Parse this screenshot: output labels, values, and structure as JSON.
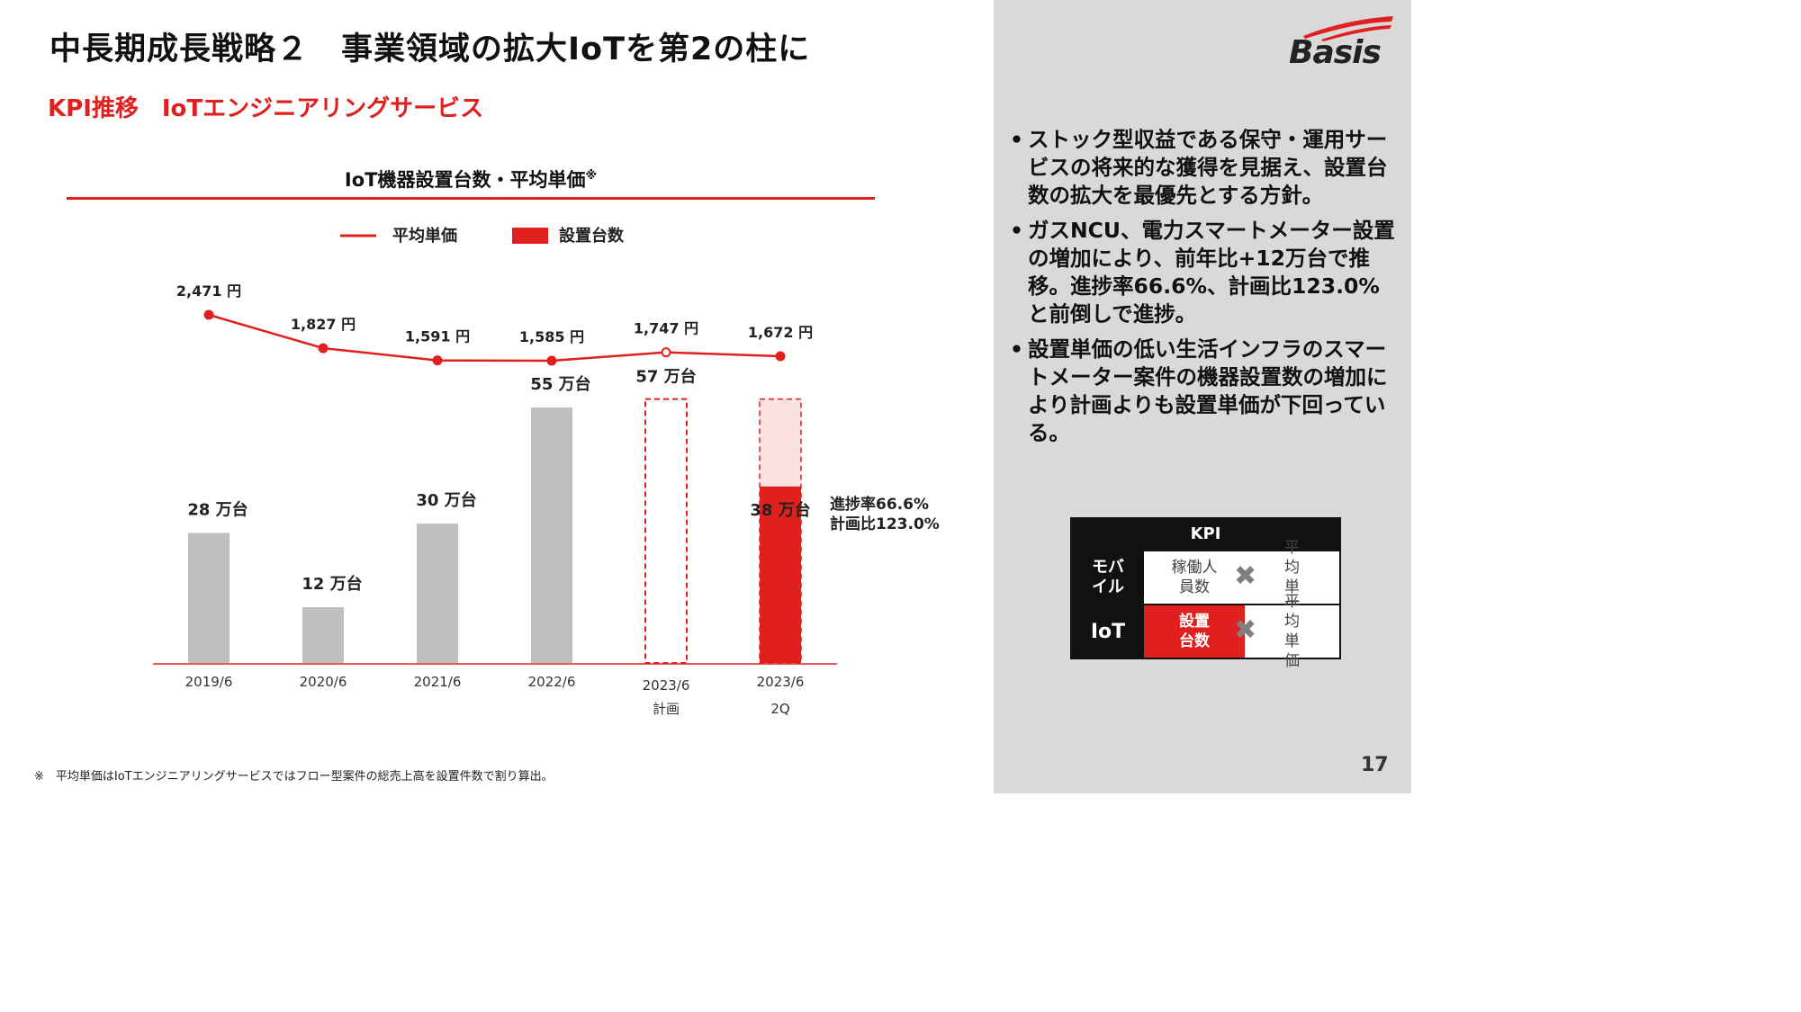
{
  "header": {
    "title": "中長期成長戦略２　事業領域の拡大IoTを第2の柱に",
    "subtitle": "KPI推移　IoTエンジニアリングサービス"
  },
  "logo": {
    "text": "Basis"
  },
  "colors": {
    "accent": "#e0201e",
    "bar_gray": "#bfbfbf",
    "plan_fill": "#fbe3e3",
    "panel_bg": "#d9d9d9"
  },
  "chart_data": {
    "type": "bar",
    "title": "IoT機器設置台数・平均単価",
    "title_mark": "※",
    "legend": [
      {
        "label": "平均単価",
        "kind": "line"
      },
      {
        "label": "設置台数",
        "kind": "bar"
      }
    ],
    "legend_position": "top-center",
    "categories": [
      "2019/6",
      "2020/6",
      "2021/6",
      "2022/6",
      "2023/6",
      "2023/6"
    ],
    "category_sublabels": [
      "",
      "",
      "",
      "",
      "計画",
      "2Q"
    ],
    "series": [
      {
        "name": "設置台数",
        "type": "bar",
        "values": [
          28,
          12,
          30,
          55,
          57,
          38
        ],
        "labels": [
          "28 万台",
          "12 万台",
          "30 万台",
          "55 万台",
          "57 万台",
          "38 万台"
        ],
        "styles": [
          "solid",
          "solid",
          "solid",
          "solid",
          "dashed-outline",
          "progress"
        ]
      },
      {
        "name": "平均単価",
        "type": "line",
        "values": [
          2471,
          1827,
          1591,
          1585,
          1747,
          1672
        ],
        "labels": [
          "2,471 円",
          "1,827 円",
          "1,591 円",
          "1,585 円",
          "1,747 円",
          "1,672 円"
        ]
      }
    ],
    "plan_target": 57,
    "annotation": [
      "進捗率66.6%",
      "計画比123.0%"
    ],
    "grid": false
  },
  "bullets": [
    "ストック型収益である保守・運用サービスの将来的な獲得を見据え、設置台数の拡大を最優先とする方針。",
    "ガスNCU、電力スマートメーター設置の増加により、前年比+12万台で推移。進捗率66.6%、計画比123.0%と前倒しで進捗。",
    "設置単価の低い生活インフラのスマートメーター案件の機器設置数の増加により計画よりも設置単価が下回っている。"
  ],
  "bullet_marker": "•",
  "kpi_table": {
    "header": "KPI",
    "cross_symbol": "✖",
    "rows": [
      {
        "label": "モバイル",
        "metric1": "稼働人員数",
        "metric2": "平均単価",
        "highlight": false
      },
      {
        "label": "IoT",
        "metric1": "設置台数",
        "metric2": "平均単価",
        "highlight": true
      }
    ]
  },
  "footnote": "※　平均単価はIoTエンジニアリングサービスではフロー型案件の総売上高を設置件数で割り算出。",
  "page_number": "17"
}
